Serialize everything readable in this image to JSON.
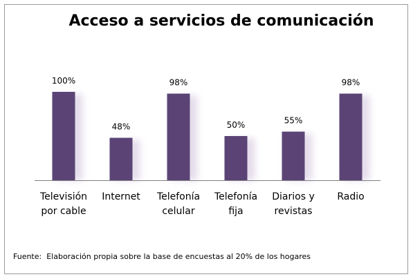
{
  "chart_data": {
    "type": "bar",
    "title": "Acceso a servicios de comunicación",
    "categories": [
      [
        "Televisión",
        "por cable"
      ],
      [
        "Internet"
      ],
      [
        "Telefonía",
        "celular"
      ],
      [
        "Telefonía",
        "fija"
      ],
      [
        "Diarios y",
        "revistas"
      ],
      [
        "Radio"
      ]
    ],
    "values": [
      100,
      48,
      98,
      50,
      55,
      98
    ],
    "value_labels": [
      "100%",
      "48%",
      "98%",
      "50%",
      "55%",
      "98%"
    ],
    "ylim": [
      0,
      100
    ],
    "grid": false,
    "legend": "none",
    "colors": {
      "bar": "#5B4475",
      "bar_shadow": "#E4DCEB",
      "axis": "#808080"
    }
  },
  "source_note": "Fuente:  Elaboración propia sobre la base de encuestas al 20% de los hogares"
}
